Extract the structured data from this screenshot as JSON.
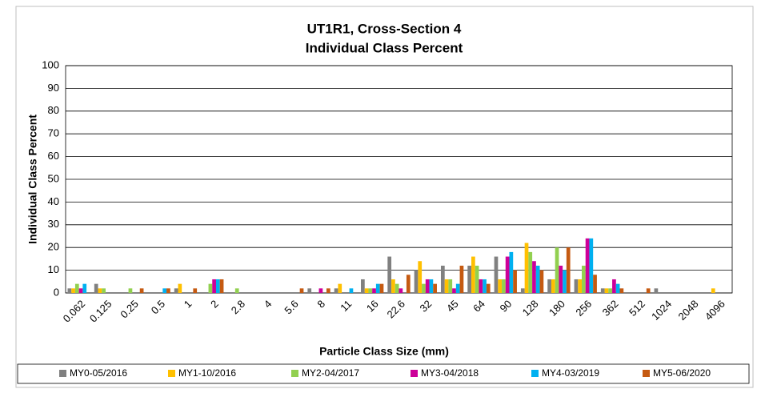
{
  "chart_data": {
    "type": "bar",
    "title": "UT1R1, Cross-Section 4",
    "subtitle": "Individual Class Percent",
    "xlabel": "Particle Class Size (mm)",
    "ylabel": "Individual Class Percent",
    "categories": [
      "0.062",
      "0.125",
      "0.25",
      "0.5",
      "1",
      "2",
      "2.8",
      "4",
      "5.6",
      "8",
      "11",
      "16",
      "22.6",
      "32",
      "45",
      "64",
      "90",
      "128",
      "180",
      "256",
      "362",
      "512",
      "1024",
      "2048",
      "4096"
    ],
    "series": [
      {
        "name": "MY0-05/2016",
        "color": "#808080",
        "values": [
          2,
          4,
          0,
          0,
          2,
          0,
          0,
          0,
          0,
          2,
          2,
          6,
          16,
          10,
          12,
          12,
          16,
          2,
          6,
          6,
          2,
          0,
          2,
          0,
          0
        ]
      },
      {
        "name": "MY1-10/2016",
        "color": "#ffc000",
        "values": [
          2,
          2,
          0,
          0,
          4,
          0,
          0,
          0,
          0,
          0,
          4,
          2,
          6,
          14,
          6,
          16,
          6,
          22,
          6,
          6,
          2,
          0,
          0,
          0,
          2
        ]
      },
      {
        "name": "MY2-04/2017",
        "color": "#92d050",
        "values": [
          4,
          2,
          2,
          0,
          0,
          4,
          2,
          0,
          0,
          0,
          0,
          2,
          4,
          4,
          6,
          12,
          6,
          18,
          20,
          12,
          2,
          0,
          0,
          0,
          0
        ]
      },
      {
        "name": "MY3-04/2018",
        "color": "#cc0099",
        "values": [
          2,
          0,
          0,
          0,
          0,
          6,
          0,
          0,
          0,
          2,
          0,
          2,
          2,
          6,
          2,
          6,
          16,
          14,
          12,
          24,
          6,
          0,
          0,
          0,
          0
        ]
      },
      {
        "name": "MY4-03/2019",
        "color": "#00b0f0",
        "values": [
          4,
          0,
          0,
          2,
          0,
          6,
          0,
          0,
          0,
          0,
          2,
          4,
          0,
          6,
          4,
          6,
          18,
          12,
          10,
          24,
          4,
          0,
          0,
          0,
          0
        ]
      },
      {
        "name": "MY5-06/2020",
        "color": "#c55a11",
        "values": [
          0,
          0,
          2,
          2,
          2,
          6,
          0,
          0,
          2,
          2,
          0,
          4,
          8,
          4,
          12,
          4,
          10,
          10,
          20,
          8,
          2,
          2,
          0,
          0,
          0
        ]
      }
    ],
    "ylim": [
      0,
      100
    ],
    "yticks": [
      0,
      10,
      20,
      30,
      40,
      50,
      60,
      70,
      80,
      90,
      100
    ],
    "grid": true
  }
}
